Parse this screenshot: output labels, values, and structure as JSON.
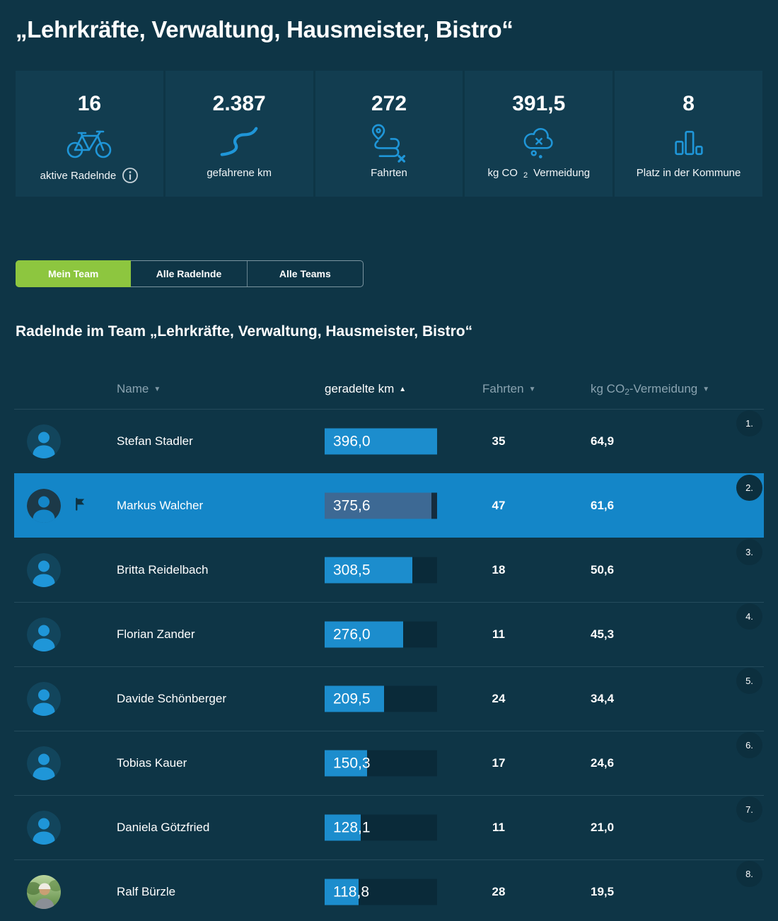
{
  "page": {
    "title": "„Lehrkräfte, Verwaltung, Hausmeister, Bistro“"
  },
  "stats": [
    {
      "value": "16",
      "label": "aktive Radelnde",
      "icon": "bicycle-icon",
      "has_info": true
    },
    {
      "value": "2.387",
      "label": "gefahrene km",
      "icon": "winding-road-icon"
    },
    {
      "value": "272",
      "label": "Fahrten",
      "icon": "route-icon"
    },
    {
      "value": "391,5",
      "label_prefix": "kg CO",
      "label_sub": "2",
      "label_suffix": " Vermeidung",
      "icon": "co2-cloud-icon"
    },
    {
      "value": "8",
      "label": "Platz in der Kommune",
      "icon": "ranking-bars-icon"
    }
  ],
  "tabs": [
    {
      "label": "Mein Team",
      "active": true
    },
    {
      "label": "Alle Radelnde",
      "active": false
    },
    {
      "label": "Alle Teams",
      "active": false
    }
  ],
  "section": {
    "heading": "Radelnde im Team „Lehrkräfte, Verwaltung, Hausmeister, Bistro“"
  },
  "table": {
    "headers": {
      "name": {
        "label": "Name",
        "arrow": "▼"
      },
      "km": {
        "label": "geradelte km",
        "arrow": "▲",
        "active": true
      },
      "fahrten": {
        "label": "Fahrten",
        "arrow": "▼"
      },
      "co2": {
        "prefix": "kg CO",
        "sub": "2",
        "suffix": "-Vermeidung",
        "arrow": "▼"
      }
    },
    "max_km": 396.0,
    "rows": [
      {
        "name": "Stefan Stadler",
        "km": "396,0",
        "km_value": 396.0,
        "fahrten": "35",
        "co2": "64,9",
        "rank": "1."
      },
      {
        "name": "Markus Walcher",
        "km": "375,6",
        "km_value": 375.6,
        "fahrten": "47",
        "co2": "61,6",
        "rank": "2.",
        "highlighted": true,
        "flag": true
      },
      {
        "name": "Britta Reidelbach",
        "km": "308,5",
        "km_value": 308.5,
        "fahrten": "18",
        "co2": "50,6",
        "rank": "3."
      },
      {
        "name": "Florian Zander",
        "km": "276,0",
        "km_value": 276.0,
        "fahrten": "11",
        "co2": "45,3",
        "rank": "4."
      },
      {
        "name": "Davide Schönberger",
        "km": "209,5",
        "km_value": 209.5,
        "fahrten": "24",
        "co2": "34,4",
        "rank": "5."
      },
      {
        "name": "Tobias Kauer",
        "km": "150,3",
        "km_value": 150.3,
        "fahrten": "17",
        "co2": "24,6",
        "rank": "6."
      },
      {
        "name": "Daniela Götzfried",
        "km": "128,1",
        "km_value": 128.1,
        "fahrten": "11",
        "co2": "21,0",
        "rank": "7."
      },
      {
        "name": "Ralf Bürzle",
        "km": "118,8",
        "km_value": 118.8,
        "fahrten": "28",
        "co2": "19,5",
        "rank": "8.",
        "avatar": "photo"
      }
    ]
  },
  "colors": {
    "page_bg": "#0e3546",
    "card_bg": "#123d50",
    "accent_blue": "#1f96d8",
    "highlight_row": "#1486c8",
    "bar_fill": "#1c8dcd",
    "bar_track": "#0a2a39",
    "rank_badge": "#0c2f3e",
    "tab_active_green": "#8dc63f"
  }
}
